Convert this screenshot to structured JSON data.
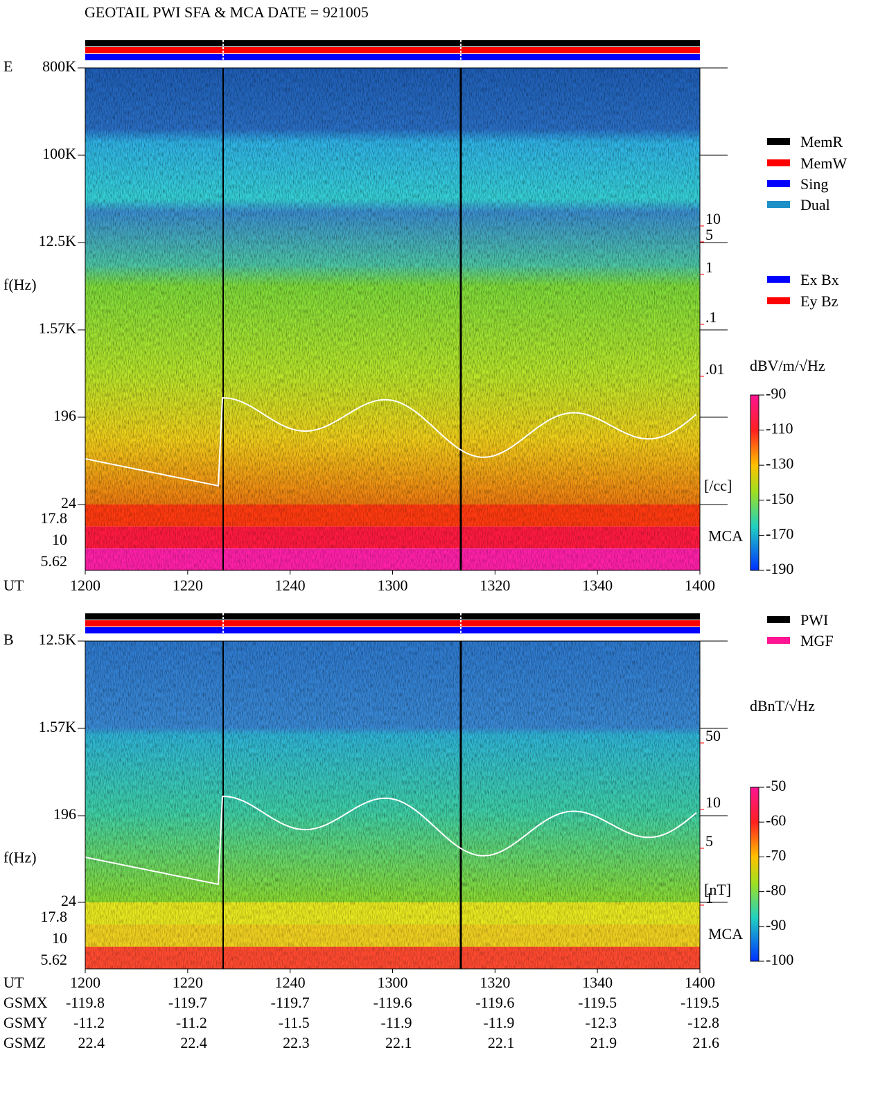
{
  "title": "GEOTAIL  PWI SFA & MCA   DATE = 921005",
  "x_label": "UT",
  "xticks": [
    "1200",
    "1220",
    "1240",
    "1300",
    "1320",
    "1340",
    "1400"
  ],
  "legend_mode": [
    {
      "name": "MemR",
      "color": "#000000"
    },
    {
      "name": "MemW",
      "color": "#ff0000"
    },
    {
      "name": "Sing",
      "color": "#0000ff"
    },
    {
      "name": "Dual",
      "color": "#1e90c8"
    }
  ],
  "legend_channel": [
    {
      "name": "Ex Bx",
      "color": "#0000ff"
    },
    {
      "name": "Ey Bz",
      "color": "#ff0000"
    }
  ],
  "legend_source": [
    {
      "name": "PWI",
      "color": "#000000"
    },
    {
      "name": "MGF",
      "color": "#ff1493"
    }
  ],
  "panels": [
    {
      "label": "E",
      "y_label": "f(Hz)",
      "freq_ticks": [
        "800K",
        "100K",
        "12.5K",
        "1.57K",
        "196",
        "24"
      ],
      "mca_ticks": [
        "17.8",
        "10",
        "5.62"
      ],
      "mca_label": "MCA",
      "right_ticks": [
        "10",
        "5",
        "1",
        ".1",
        ".01"
      ],
      "right_unit": "[/cc]",
      "colorbar_unit": "dBV/m/√Hz",
      "colorbar_ticks": [
        -90,
        -110,
        -130,
        -150,
        -170,
        -190
      ]
    },
    {
      "label": "B",
      "y_label": "f(Hz)",
      "freq_ticks": [
        "12.5K",
        "1.57K",
        "196",
        "24"
      ],
      "mca_ticks": [
        "17.8",
        "10",
        "5.62"
      ],
      "mca_label": "MCA",
      "right_ticks": [
        "50",
        "10",
        "5",
        "1"
      ],
      "right_unit": "[nT]",
      "colorbar_unit": "dBnT/√Hz",
      "colorbar_ticks": [
        -50,
        -60,
        -70,
        -80,
        -90,
        -100
      ]
    }
  ],
  "orbit": [
    {
      "label": "GSMX",
      "values": [
        -119.8,
        -119.7,
        -119.7,
        -119.6,
        -119.6,
        -119.5,
        -119.5
      ]
    },
    {
      "label": "GSMY",
      "values": [
        -11.2,
        -11.2,
        -11.5,
        -11.9,
        -11.9,
        -12.3,
        -12.8
      ]
    },
    {
      "label": "GSMZ",
      "values": [
        22.4,
        22.4,
        22.3,
        22.1,
        22.1,
        21.9,
        21.6
      ]
    }
  ]
}
